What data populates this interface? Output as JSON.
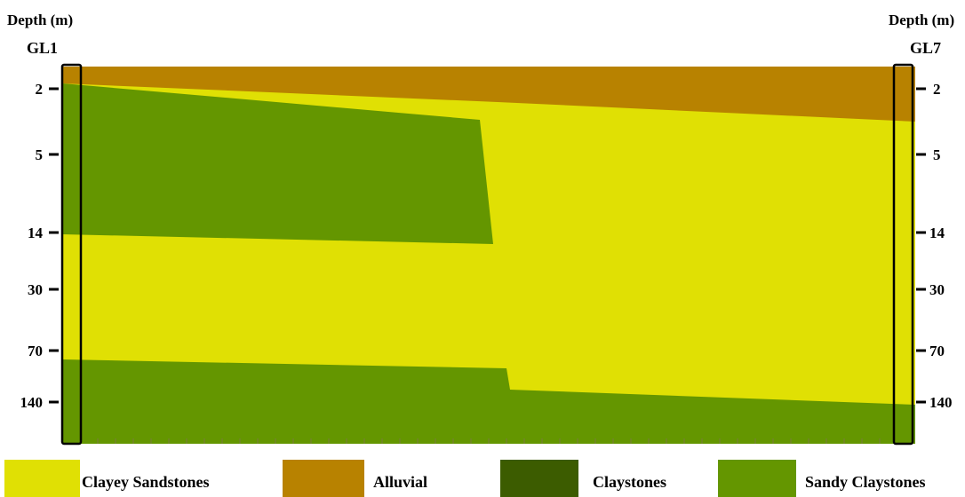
{
  "left_well": {
    "header": "Depth (m)",
    "name": "GL1"
  },
  "right_well": {
    "header": "Depth (m)",
    "name": "GL7"
  },
  "depth_ticks": [
    "2",
    "5",
    "14",
    "30",
    "70",
    "140"
  ],
  "legend": [
    {
      "label": "Clayey Sandstones",
      "color": "#e0e004"
    },
    {
      "label": "Alluvial",
      "color": "#b88200"
    },
    {
      "label": "Claystones",
      "color": "#3c5c00"
    },
    {
      "label": "Sandy Claystones",
      "color": "#649600"
    }
  ],
  "colors": {
    "clayey_sandstones": "#e0e004",
    "alluvial": "#b88200",
    "claystones": "#3c5c00",
    "sandy_claystones": "#649600"
  }
}
